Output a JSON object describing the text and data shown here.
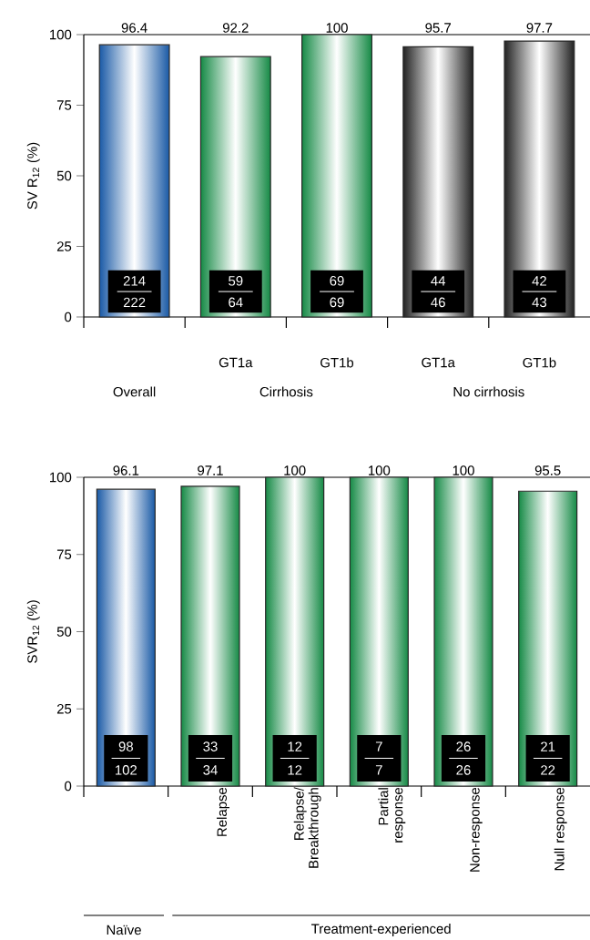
{
  "chart_data": [
    {
      "type": "bar",
      "categories": [
        null,
        "GT1a",
        "GT1b",
        "GT1a",
        "GT1b"
      ],
      "values": [
        96.4,
        92.2,
        100,
        95.7,
        97.7
      ],
      "colors": [
        "#1a5aa6",
        "#168a46",
        "#168a46",
        "#222222",
        "#222222"
      ],
      "ylabel": "SV R$_{12}$ (%)",
      "ylim": [
        0,
        100
      ],
      "yticks": [
        0,
        25,
        50,
        75,
        100
      ],
      "data_labels": true,
      "annotations": [
        "Overall",
        "Cirrhosis",
        "No cirrhosis",
        "214",
        "222",
        "59",
        "64",
        "69",
        "69",
        "44",
        "46",
        "42",
        "43"
      ]
    },
    {
      "type": "bar",
      "categories": [
        null,
        "Relapse",
        "Relapse/ Breakthrough",
        "Partial response",
        "Non-response",
        "Null response"
      ],
      "values": [
        96.1,
        97.1,
        100,
        100,
        100,
        95.5
      ],
      "colors": [
        "#1a5aa6",
        "#168a46",
        "#168a46",
        "#168a46",
        "#168a46",
        "#168a46"
      ],
      "ylabel": "SVR$_{12}$ (%)",
      "ylim": [
        0,
        100
      ],
      "yticks": [
        0,
        25,
        50,
        75,
        100
      ],
      "data_labels": true,
      "annotations": [
        "Naïve",
        "Treatment-experienced",
        "98",
        "102",
        "33",
        "34",
        "12",
        "12",
        "7",
        "7",
        "26",
        "26",
        "21",
        "22"
      ]
    }
  ]
}
